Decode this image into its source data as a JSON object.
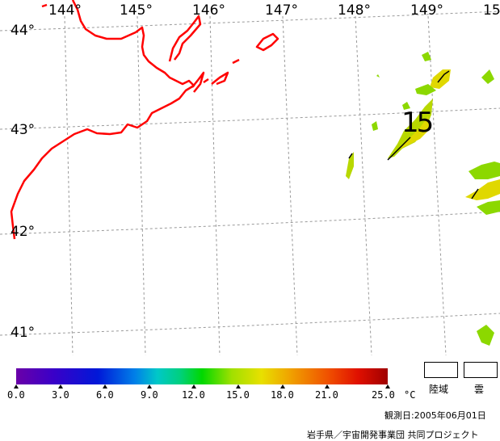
{
  "map": {
    "lon_labels": [
      "144°",
      "145°",
      "146°",
      "147°",
      "148°",
      "149°",
      "15"
    ],
    "lat_labels": [
      "44°",
      "43°",
      "42°",
      "41°"
    ],
    "contour_label": "15",
    "colors": {
      "coast": "#ff0000",
      "grid": "#999999",
      "sst_yellow": "#e0d800",
      "sst_green": "#8cd800"
    }
  },
  "colorbar": {
    "ticks": [
      "0.0",
      "3.0",
      "6.0",
      "9.0",
      "12.0",
      "15.0",
      "18.0",
      "21.0",
      "25.0"
    ],
    "unit": "°C"
  },
  "legend": {
    "land_label": "陸域",
    "cloud_label": "雲"
  },
  "footer": {
    "observation_date": "観測日:2005年06月01日",
    "credit": "岩手県／宇宙開発事業団 共同プロジェクト"
  }
}
